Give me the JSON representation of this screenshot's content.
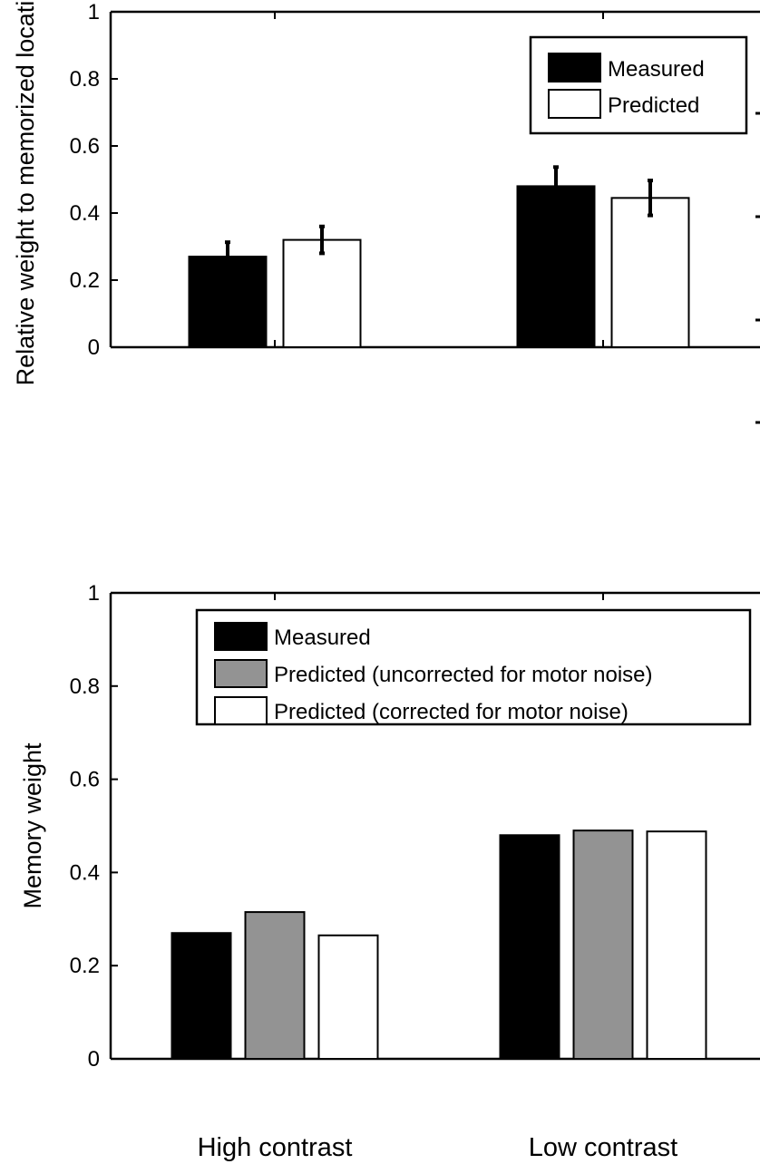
{
  "chart_data": [
    {
      "type": "bar",
      "ylabel": "Relative weight to memorized location",
      "ylim": [
        0,
        1
      ],
      "yticks": [
        "0",
        "0.2",
        "0.4",
        "0.6",
        "0.8",
        "1"
      ],
      "categories": [
        "High contrast",
        "Low contrast"
      ],
      "series": [
        {
          "name": "Measured",
          "color": "#000000",
          "values": [
            0.27,
            0.48
          ],
          "err_low": [
            0.226,
            0.422
          ],
          "err_high": [
            0.313,
            0.537
          ]
        },
        {
          "name": "Predicted",
          "color": "#ffffff",
          "values": [
            0.32,
            0.445
          ],
          "err_low": [
            0.28,
            0.393
          ],
          "err_high": [
            0.36,
            0.497
          ]
        }
      ],
      "legend_position": "top-right",
      "grid": false
    },
    {
      "type": "bar",
      "ylabel": "Memory weight",
      "ylim": [
        0,
        1
      ],
      "yticks": [
        "0",
        "0.2",
        "0.4",
        "0.6",
        "0.8",
        "1"
      ],
      "categories": [
        "High contrast",
        "Low contrast"
      ],
      "series": [
        {
          "name": "Measured",
          "color": "#000000",
          "values": [
            0.27,
            0.48
          ]
        },
        {
          "name": "Predicted (uncorrected for motor noise)",
          "color": "#939393",
          "values": [
            0.315,
            0.49
          ]
        },
        {
          "name": "Predicted (corrected for motor noise)",
          "color": "#ffffff",
          "values": [
            0.265,
            0.488
          ]
        }
      ],
      "legend_position": "top",
      "grid": false
    }
  ]
}
